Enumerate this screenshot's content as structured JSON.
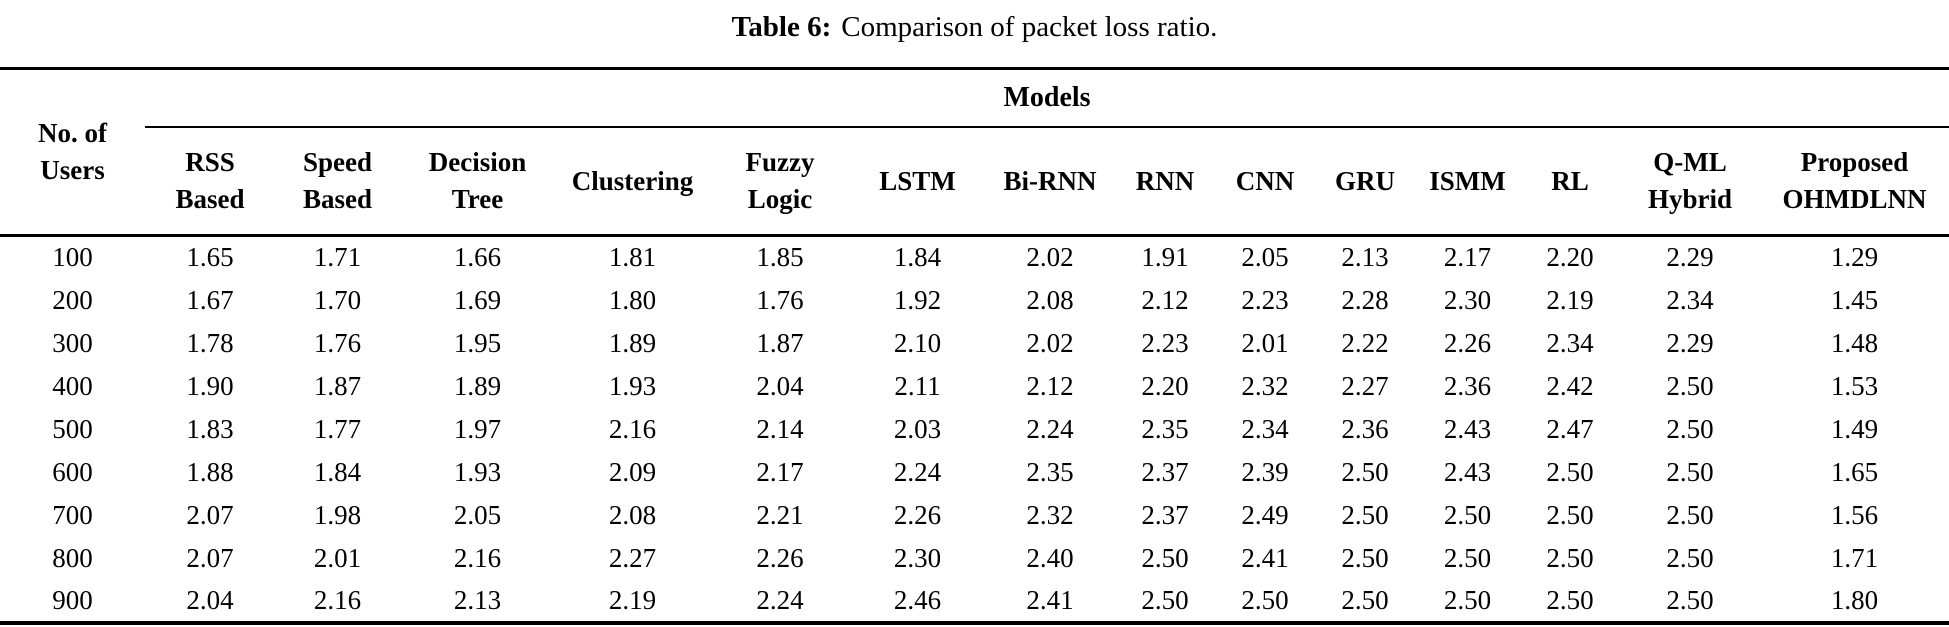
{
  "title": {
    "label": "Table 6:",
    "text": "Comparison of packet loss ratio."
  },
  "table": {
    "corner_header": {
      "label": "No. of Users",
      "lines": [
        "No. of",
        "Users"
      ]
    },
    "group_header": "Models",
    "columns": [
      {
        "label": "RSS Based",
        "lines": [
          "RSS",
          "Based"
        ]
      },
      {
        "label": "Speed Based",
        "lines": [
          "Speed",
          "Based"
        ]
      },
      {
        "label": "Decision Tree",
        "lines": [
          "Decision",
          "Tree"
        ]
      },
      {
        "label": "Clustering",
        "lines": [
          "Clustering"
        ]
      },
      {
        "label": "Fuzzy Logic",
        "lines": [
          "Fuzzy",
          "Logic"
        ]
      },
      {
        "label": "LSTM",
        "lines": [
          "LSTM"
        ]
      },
      {
        "label": "Bi-RNN",
        "lines": [
          "Bi-RNN"
        ]
      },
      {
        "label": "RNN",
        "lines": [
          "RNN"
        ]
      },
      {
        "label": "CNN",
        "lines": [
          "CNN"
        ]
      },
      {
        "label": "GRU",
        "lines": [
          "GRU"
        ]
      },
      {
        "label": "ISMM",
        "lines": [
          "ISMM"
        ]
      },
      {
        "label": "RL",
        "lines": [
          "RL"
        ]
      },
      {
        "label": "Q-ML Hybrid",
        "lines": [
          "Q-ML",
          "Hybrid"
        ]
      },
      {
        "label": "Proposed OHMDLNN",
        "lines": [
          "Proposed",
          "OHMDLNN"
        ]
      }
    ],
    "rows": [
      {
        "users": "100",
        "values": [
          "1.65",
          "1.71",
          "1.66",
          "1.81",
          "1.85",
          "1.84",
          "2.02",
          "1.91",
          "2.05",
          "2.13",
          "2.17",
          "2.20",
          "2.29",
          "1.29"
        ]
      },
      {
        "users": "200",
        "values": [
          "1.67",
          "1.70",
          "1.69",
          "1.80",
          "1.76",
          "1.92",
          "2.08",
          "2.12",
          "2.23",
          "2.28",
          "2.30",
          "2.19",
          "2.34",
          "1.45"
        ]
      },
      {
        "users": "300",
        "values": [
          "1.78",
          "1.76",
          "1.95",
          "1.89",
          "1.87",
          "2.10",
          "2.02",
          "2.23",
          "2.01",
          "2.22",
          "2.26",
          "2.34",
          "2.29",
          "1.48"
        ]
      },
      {
        "users": "400",
        "values": [
          "1.90",
          "1.87",
          "1.89",
          "1.93",
          "2.04",
          "2.11",
          "2.12",
          "2.20",
          "2.32",
          "2.27",
          "2.36",
          "2.42",
          "2.50",
          "1.53"
        ]
      },
      {
        "users": "500",
        "values": [
          "1.83",
          "1.77",
          "1.97",
          "2.16",
          "2.14",
          "2.03",
          "2.24",
          "2.35",
          "2.34",
          "2.36",
          "2.43",
          "2.47",
          "2.50",
          "1.49"
        ]
      },
      {
        "users": "600",
        "values": [
          "1.88",
          "1.84",
          "1.93",
          "2.09",
          "2.17",
          "2.24",
          "2.35",
          "2.37",
          "2.39",
          "2.50",
          "2.43",
          "2.50",
          "2.50",
          "1.65"
        ]
      },
      {
        "users": "700",
        "values": [
          "2.07",
          "1.98",
          "2.05",
          "2.08",
          "2.21",
          "2.26",
          "2.32",
          "2.37",
          "2.49",
          "2.50",
          "2.50",
          "2.50",
          "2.50",
          "1.56"
        ]
      },
      {
        "users": "800",
        "values": [
          "2.07",
          "2.01",
          "2.16",
          "2.27",
          "2.26",
          "2.30",
          "2.40",
          "2.50",
          "2.41",
          "2.50",
          "2.50",
          "2.50",
          "2.50",
          "1.71"
        ]
      },
      {
        "users": "900",
        "values": [
          "2.04",
          "2.16",
          "2.13",
          "2.19",
          "2.24",
          "2.46",
          "2.41",
          "2.50",
          "2.50",
          "2.50",
          "2.50",
          "2.50",
          "2.50",
          "1.80"
        ]
      }
    ]
  },
  "colors": {
    "text": "#000000",
    "background": "#ffffff",
    "rule": "#000000"
  }
}
